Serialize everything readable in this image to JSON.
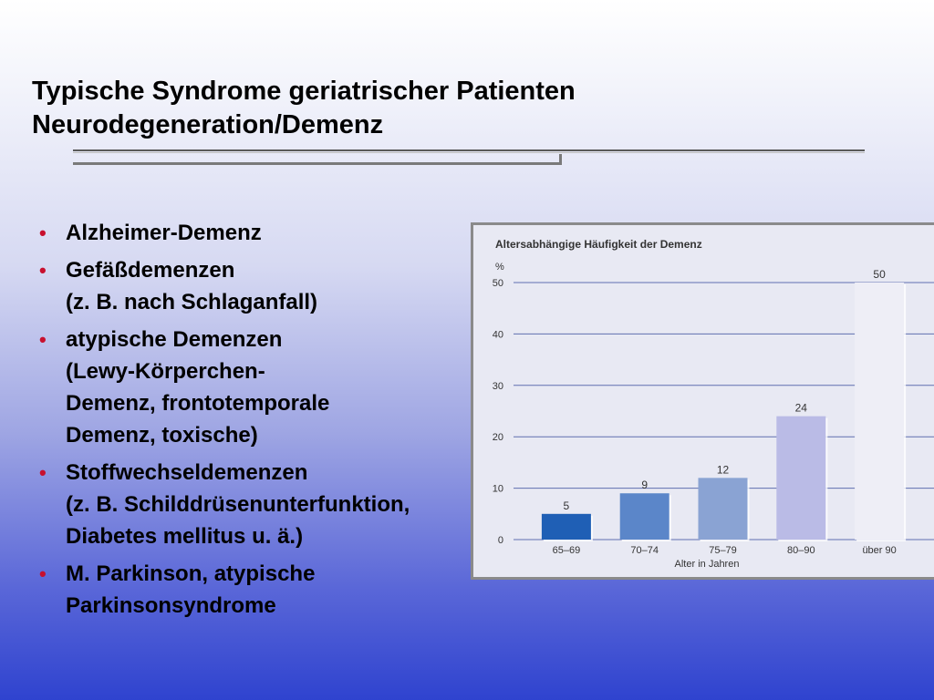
{
  "slide": {
    "title_line1": "Typische Syndrome geriatrischer Patienten",
    "title_line2": "Neurodegeneration/Demenz"
  },
  "bullets": [
    {
      "lines": [
        "Alzheimer-Demenz"
      ]
    },
    {
      "lines": [
        "Gefäßdemenzen",
        "(z. B. nach Schlaganfall)"
      ]
    },
    {
      "lines": [
        "atypische Demenzen",
        "(Lewy-Körperchen-",
        "Demenz, frontotemporale",
        "Demenz, toxische)"
      ]
    },
    {
      "lines": [
        "Stoffwechseldemenzen",
        "(z. B. Schilddrüsenunterfunktion,",
        "Diabetes mellitus u. ä.)"
      ]
    },
    {
      "lines": [
        "M. Parkinson, atypische",
        "Parkinsonsyndrome"
      ]
    }
  ],
  "bullet_symbol": "•",
  "chart_data": {
    "type": "bar",
    "title": "Altersabhängige Häufigkeit der Demenz",
    "unit_label": "%",
    "xlabel": "Alter in Jahren",
    "ylabel": "",
    "categories": [
      "65–69",
      "70–74",
      "75–79",
      "80–90",
      "über 90"
    ],
    "values": [
      5,
      9,
      12,
      24,
      50
    ],
    "ylim": [
      0,
      50
    ],
    "yticks": [
      0,
      10,
      20,
      30,
      40,
      50
    ],
    "grid": true,
    "colors": [
      "#1f5fb5",
      "#5b86c9",
      "#8aa3d3",
      "#babbe6",
      "#eeeef6"
    ]
  }
}
